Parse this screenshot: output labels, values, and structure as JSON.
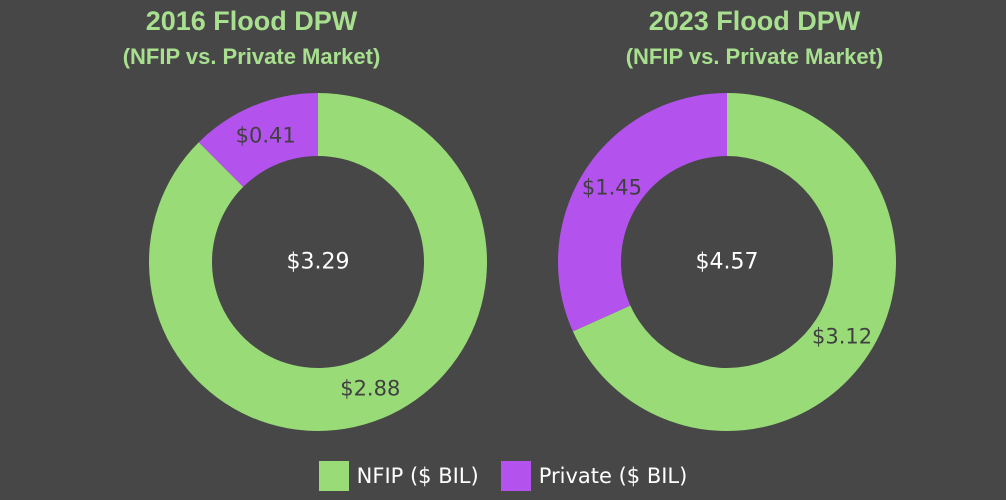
{
  "colors": {
    "nfip": "#98db77",
    "private": "#b352ec",
    "background": "#474747",
    "title": "#a8e08f"
  },
  "legend": [
    {
      "label": "NFIP ($ BIL)",
      "color": "#98db77"
    },
    {
      "label": "Private ($ BIL)",
      "color": "#b352ec"
    }
  ],
  "chart_data": [
    {
      "type": "pie",
      "title": "2016 Flood DPW",
      "subtitle": "(NFIP vs. Private Market)",
      "center_label": "$3.29",
      "slices": [
        {
          "name": "NFIP ($ BIL)",
          "value": 2.88,
          "label": "$2.88"
        },
        {
          "name": "Private ($ BIL)",
          "value": 0.41,
          "label": "$0.41"
        }
      ]
    },
    {
      "type": "pie",
      "title": "2023 Flood DPW",
      "subtitle": "(NFIP vs. Private Market)",
      "center_label": "$4.57",
      "slices": [
        {
          "name": "NFIP ($ BIL)",
          "value": 3.12,
          "label": "$3.12"
        },
        {
          "name": "Private ($ BIL)",
          "value": 1.45,
          "label": "$1.45"
        }
      ]
    }
  ]
}
